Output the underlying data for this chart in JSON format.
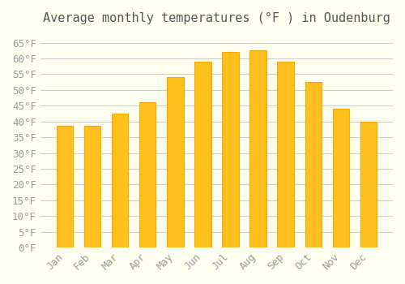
{
  "title": "Average monthly temperatures (°F ) in Oudenburg",
  "months": [
    "Jan",
    "Feb",
    "Mar",
    "Apr",
    "May",
    "Jun",
    "Jul",
    "Aug",
    "Sep",
    "Oct",
    "Nov",
    "Dec"
  ],
  "values": [
    38.5,
    38.5,
    42.5,
    46.0,
    54.0,
    59.0,
    62.0,
    62.5,
    59.0,
    52.5,
    44.0,
    40.0
  ],
  "bar_color_face": "#FFC020",
  "bar_color_edge": "#FFA500",
  "background_color": "#FFFFF0",
  "grid_color": "#CCCCCC",
  "ylim": [
    0,
    68
  ],
  "yticks": [
    0,
    5,
    10,
    15,
    20,
    25,
    30,
    35,
    40,
    45,
    50,
    55,
    60,
    65
  ],
  "title_fontsize": 11,
  "tick_fontsize": 9,
  "font_family": "monospace"
}
